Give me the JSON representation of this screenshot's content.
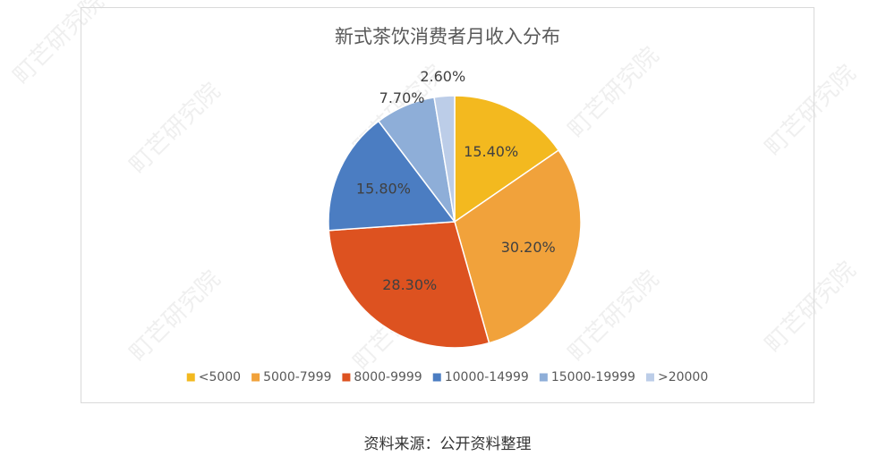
{
  "chart_data": {
    "type": "pie",
    "title": "新式茶饮消费者月收入分布",
    "categories": [
      "<5000",
      "5000-7999",
      "8000-9999",
      "10000-14999",
      "15000-19999",
      ">20000"
    ],
    "values": [
      15.4,
      30.2,
      28.3,
      15.8,
      7.7,
      2.6
    ],
    "value_labels": [
      "15.40%",
      "30.20%",
      "28.30%",
      "15.80%",
      "7.70%",
      "2.60%"
    ],
    "colors": [
      "#f3b91f",
      "#f1a23b",
      "#dd5220",
      "#4b7dc2",
      "#8eaed8",
      "#bccde8"
    ],
    "legend": "bottom"
  },
  "source": "资料来源：公开资料整理",
  "watermark": "町芒研究院"
}
